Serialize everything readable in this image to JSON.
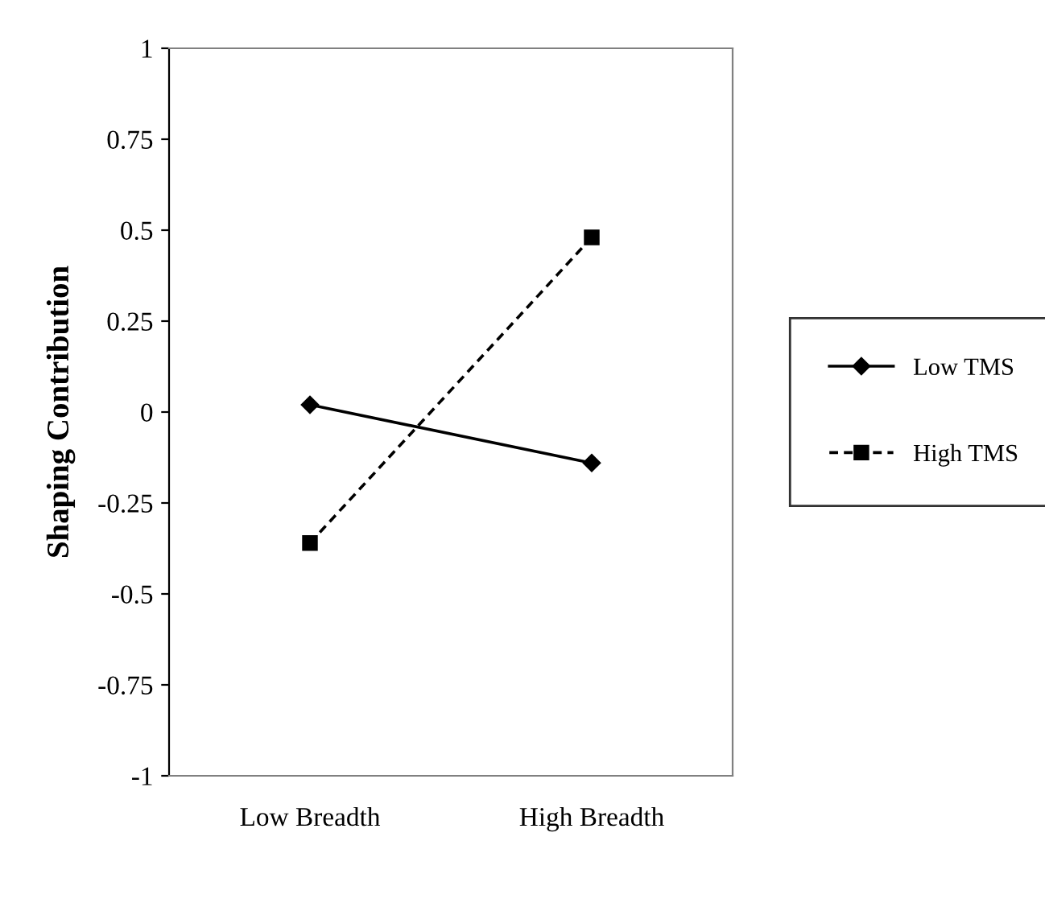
{
  "chart_data": {
    "type": "line",
    "ylabel": "Shaping Contribution",
    "categories": [
      "Low Breadth",
      "High Breadth"
    ],
    "series": [
      {
        "name": "Low TMS",
        "color": "#000000",
        "values": [
          0.02,
          -0.14
        ],
        "marker": "diamond",
        "line_style": "solid"
      },
      {
        "name": "High TMS",
        "color": "#000000",
        "values": [
          -0.36,
          0.48
        ],
        "marker": "square",
        "line_style": "dashed"
      }
    ],
    "ylim": [
      -1,
      1
    ],
    "yticks": [
      -1,
      -0.75,
      -0.5,
      -0.25,
      0,
      0.25,
      0.5,
      0.75,
      1
    ],
    "grid": false,
    "legend": "right"
  }
}
